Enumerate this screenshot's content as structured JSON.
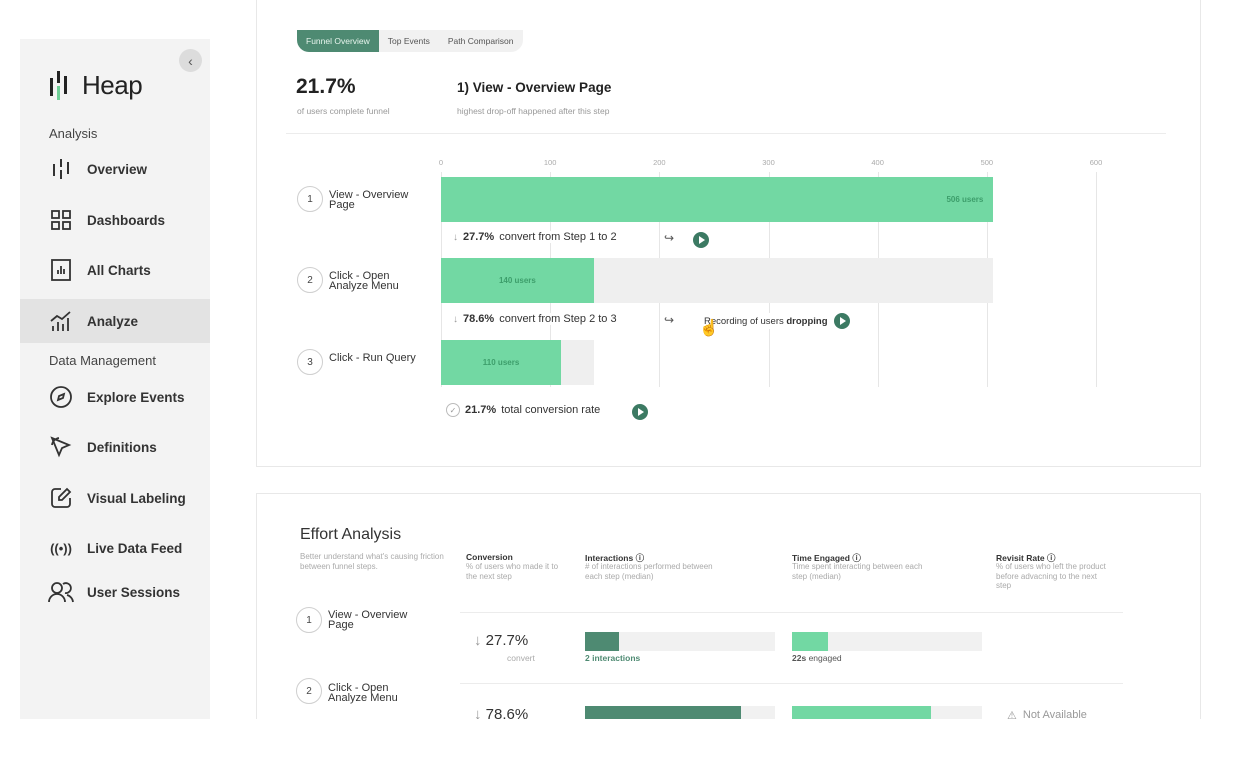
{
  "sidebar": {
    "brand": "Heap",
    "sections": {
      "analysis": "Analysis",
      "data_management": "Data Management"
    },
    "items": [
      {
        "label": "Overview",
        "icon": "overview-icon"
      },
      {
        "label": "Dashboards",
        "icon": "dashboards-icon"
      },
      {
        "label": "All Charts",
        "icon": "all-charts-icon"
      },
      {
        "label": "Analyze",
        "icon": "analyze-icon",
        "active": true
      },
      {
        "label": "Explore Events",
        "icon": "compass-icon"
      },
      {
        "label": "Definitions",
        "icon": "cursor-icon"
      },
      {
        "label": "Visual Labeling",
        "icon": "edit-icon"
      },
      {
        "label": "Live Data Feed",
        "icon": "broadcast-icon"
      },
      {
        "label": "User Sessions",
        "icon": "users-icon"
      }
    ]
  },
  "tabs": [
    "Funnel Overview",
    "Top Events",
    "Path Comparison"
  ],
  "summary": {
    "rate": "21.7%",
    "rate_caption": "of users complete funnel",
    "dropoff_title": "1) View - Overview Page",
    "dropoff_caption": "highest drop-off happened after this step"
  },
  "funnel": {
    "ticks": [
      "0",
      "100",
      "200",
      "300",
      "400",
      "500",
      "600"
    ],
    "steps": [
      {
        "num": "1",
        "name": "View - Overview Page",
        "users": 506,
        "label": "506 users"
      },
      {
        "num": "2",
        "name": "Click - Open Analyze Menu",
        "users": 140,
        "label": "140 users"
      },
      {
        "num": "3",
        "name": "Click - Run Query",
        "users": 110,
        "label": "110 users"
      }
    ],
    "conversions": [
      {
        "pct": "27.7%",
        "text": "convert from Step 1 to 2"
      },
      {
        "pct": "78.6%",
        "text": "convert from Step 2 to 3"
      }
    ],
    "recording_text": "Recording of users",
    "recording_bold": "dropping",
    "total_pct": "21.7%",
    "total_text": "total conversion rate"
  },
  "effort": {
    "title": "Effort Analysis",
    "subtitle": "Better understand what's causing friction between funnel steps.",
    "columns": [
      {
        "title": "Conversion",
        "desc": "% of users who made it to the next step"
      },
      {
        "title": "Interactions",
        "desc": "# of interactions performed between each step (median)"
      },
      {
        "title": "Time Engaged",
        "desc": "Time spent interacting between each step (median)"
      },
      {
        "title": "Revisit Rate",
        "desc": "% of users who left the product before advacning to the next step"
      }
    ],
    "rows": [
      {
        "num": "1",
        "name": "View - Overview Page",
        "conversion": "27.7%",
        "conversion_caption": "convert",
        "interactions": "2 interactions",
        "engaged_value": "22s",
        "engaged_text": "engaged",
        "interactions_fill": 0.18,
        "engaged_fill": 0.19
      },
      {
        "num": "2",
        "name": "Click - Open Analyze Menu",
        "conversion": "78.6%",
        "interactions_fill": 0.82,
        "engaged_fill": 0.73,
        "revisit": "Not Available"
      }
    ]
  }
}
